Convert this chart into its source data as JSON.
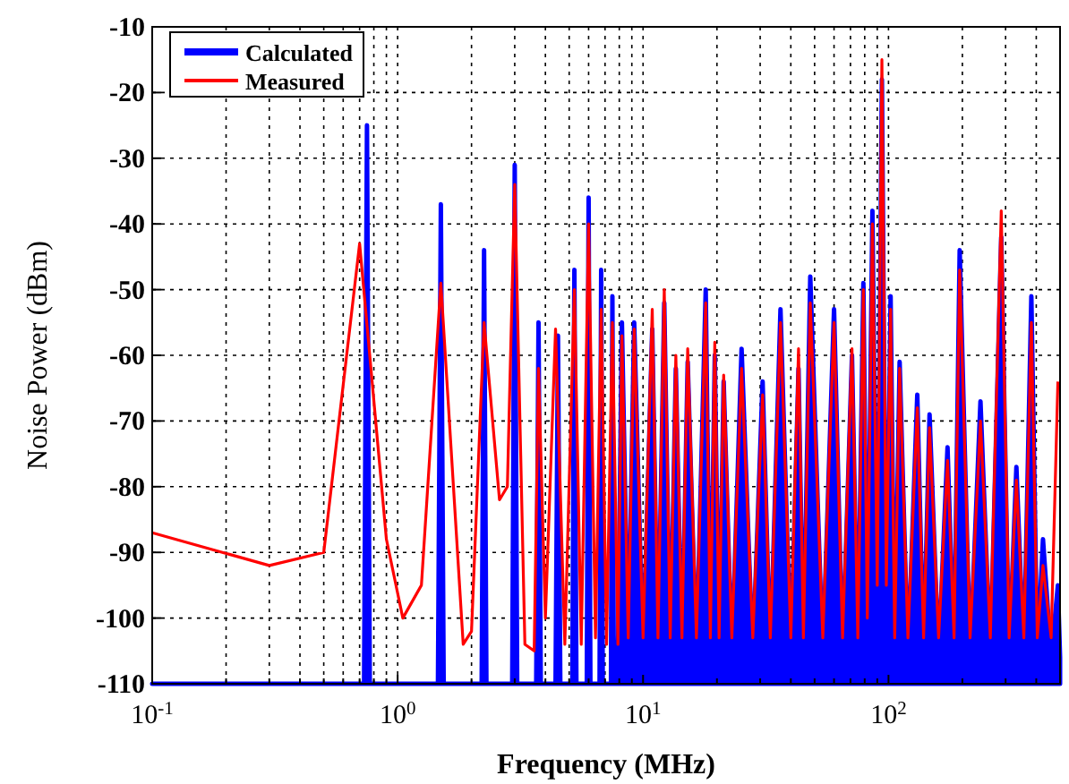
{
  "chart_data": {
    "type": "line",
    "xlabel": "Frequency (MHz)",
    "ylabel": "Noise Power (dBm)",
    "log": "x",
    "grid": true,
    "legend": "top left",
    "xlim": [
      0.1,
      500
    ],
    "ylim": [
      -110,
      -10
    ],
    "yticks": [
      -110,
      -100,
      -90,
      -80,
      -70,
      -60,
      -50,
      -40,
      -30,
      -20,
      -10
    ],
    "xticks": [
      {
        "value": 0.1,
        "label": "10$^{-1}$"
      },
      {
        "value": 0.2,
        "label": null
      },
      {
        "value": 0.3,
        "label": null
      },
      {
        "value": 0.4,
        "label": null
      },
      {
        "value": 0.5,
        "label": null
      },
      {
        "value": 0.6,
        "label": null
      },
      {
        "value": 0.7,
        "label": null
      },
      {
        "value": 0.8,
        "label": null
      },
      {
        "value": 0.9,
        "label": null
      },
      {
        "value": 1,
        "label": "10$^{0}$"
      },
      {
        "value": 2,
        "label": null
      },
      {
        "value": 3,
        "label": null
      },
      {
        "value": 4,
        "label": null
      },
      {
        "value": 5,
        "label": null
      },
      {
        "value": 6,
        "label": null
      },
      {
        "value": 7,
        "label": null
      },
      {
        "value": 8,
        "label": null
      },
      {
        "value": 9,
        "label": null
      },
      {
        "value": 10,
        "label": "10$^{1}$"
      },
      {
        "value": 20,
        "label": null
      },
      {
        "value": 30,
        "label": null
      },
      {
        "value": 40,
        "label": null
      },
      {
        "value": 50,
        "label": null
      },
      {
        "value": 60,
        "label": null
      },
      {
        "value": 70,
        "label": null
      },
      {
        "value": 80,
        "label": null
      },
      {
        "value": 90,
        "label": null
      },
      {
        "value": 100,
        "label": "10$^{2}$"
      },
      {
        "value": 200,
        "label": null
      },
      {
        "value": 300,
        "label": null
      },
      {
        "value": 400,
        "label": null
      }
    ],
    "series": [
      {
        "name": "Calculated",
        "type": "area",
        "color": "#0000ff",
        "x": [
          0.1,
          0.73,
          0.75,
          0.77,
          1.46,
          1.5,
          1.54,
          2.2,
          2.25,
          2.3,
          2.93,
          3,
          3.07,
          3.67,
          3.75,
          3.83,
          4.4,
          4.5,
          4.6,
          5.15,
          5.25,
          5.35,
          5.9,
          6,
          6.1,
          6.65,
          6.75,
          6.85,
          7.4,
          7.5,
          7.6,
          7.9,
          8.2,
          8.7,
          9.2,
          10,
          10.9,
          11.5,
          12.2,
          12.9,
          13.6,
          14.4,
          15.2,
          16.5,
          18,
          18.8,
          19.6,
          20.4,
          21.3,
          23,
          25.2,
          28,
          30.7,
          33,
          36.3,
          40,
          43,
          45,
          48,
          54,
          60,
          65,
          71,
          75,
          79,
          82,
          86,
          90,
          94,
          98,
          102,
          106,
          111,
          120,
          131,
          139,
          147,
          160,
          174,
          185,
          195,
          215,
          237,
          260,
          288,
          310,
          332,
          356,
          382,
          404,
          426,
          460,
          490,
          500,
          500
        ],
        "values": [
          -110,
          -110,
          -25,
          -110,
          -110,
          -37,
          -110,
          -110,
          -44,
          -110,
          -110,
          -31,
          -110,
          -110,
          -55,
          -110,
          -110,
          -57,
          -110,
          -110,
          -47,
          -110,
          -110,
          -36,
          -110,
          -110,
          -47,
          -110,
          -110,
          -51,
          -110,
          -106,
          -55,
          -106,
          -55,
          -106,
          -56,
          -106,
          -52,
          -106,
          -62,
          -106,
          -61,
          -106,
          -50,
          -106,
          -60,
          -106,
          -64,
          -106,
          -59,
          -106,
          -64,
          -106,
          -53,
          -106,
          -62,
          -106,
          -48,
          -106,
          -53,
          -106,
          -60,
          -106,
          -49,
          -106,
          -38,
          -105,
          -18,
          -105,
          -51,
          -106,
          -61,
          -106,
          -66,
          -106,
          -69,
          -106,
          -74,
          -106,
          -44,
          -106,
          -67,
          -106,
          -42,
          -106,
          -77,
          -106,
          -51,
          -106,
          -88,
          -106,
          -95,
          -106,
          -110
        ]
      },
      {
        "name": "Measured",
        "color": "#ff0000",
        "x": [
          0.1,
          0.3,
          0.5,
          0.7,
          0.9,
          1.05,
          1.25,
          1.5,
          1.85,
          2,
          2.25,
          2.6,
          2.8,
          3,
          3.3,
          3.6,
          3.75,
          4,
          4.4,
          4.8,
          5.25,
          5.6,
          6,
          6.4,
          6.75,
          7.1,
          7.5,
          7.9,
          8.2,
          8.7,
          9.2,
          10,
          10.9,
          11.5,
          12.2,
          12.9,
          13.6,
          14.4,
          15.2,
          16.5,
          18,
          18.8,
          19.6,
          20.4,
          21.3,
          23,
          25.2,
          28,
          30.7,
          33,
          36.3,
          40,
          43,
          45,
          48,
          54,
          60,
          65,
          71,
          75,
          79,
          82,
          86,
          90,
          94,
          98,
          102,
          106,
          111,
          120,
          131,
          139,
          147,
          160,
          174,
          185,
          195,
          215,
          237,
          260,
          288,
          310,
          332,
          356,
          382,
          404,
          426,
          460,
          490
        ],
        "values": [
          -87,
          -92,
          -90,
          -43,
          -88,
          -100,
          -95,
          -49,
          -104,
          -102,
          -55,
          -82,
          -80,
          -34,
          -104,
          -105,
          -62,
          -100,
          -56,
          -104,
          -50,
          -104,
          -40,
          -103,
          -53,
          -104,
          -55,
          -104,
          -57,
          -103,
          -56,
          -103,
          -53,
          -103,
          -50,
          -103,
          -60,
          -103,
          -59,
          -103,
          -52,
          -103,
          -58,
          -103,
          -63,
          -103,
          -62,
          -103,
          -66,
          -103,
          -55,
          -103,
          -59,
          -103,
          -52,
          -103,
          -55,
          -103,
          -59,
          -103,
          -50,
          -100,
          -40,
          -95,
          -15,
          -95,
          -53,
          -103,
          -62,
          -103,
          -68,
          -103,
          -71,
          -103,
          -76,
          -103,
          -47,
          -103,
          -70,
          -103,
          -38,
          -103,
          -79,
          -103,
          -55,
          -103,
          -92,
          -103,
          -64
        ]
      }
    ]
  }
}
